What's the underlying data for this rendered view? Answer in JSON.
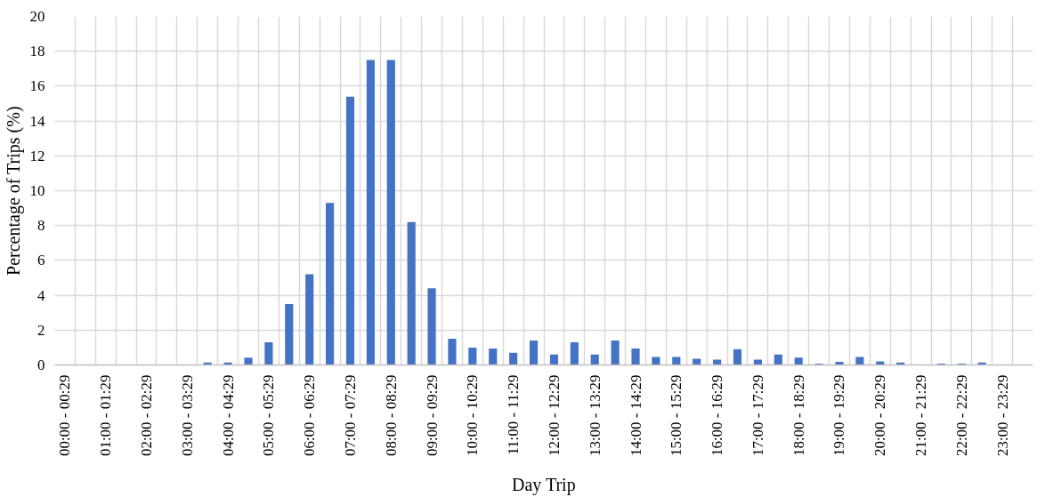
{
  "chart_data": {
    "type": "bar",
    "xlabel": "Day Trip",
    "ylabel": "Percentage of Trips (%)",
    "categories": [
      "00:00 - 00:29",
      null,
      "01:00 - 01:29",
      null,
      "02:00 - 02:29",
      null,
      "03:00 - 03:29",
      null,
      "04:00 - 04:29",
      null,
      "05:00 - 05:29",
      null,
      "06:00 - 06:29",
      null,
      "07:00 - 07:29",
      null,
      "08:00 - 08:29",
      null,
      "09:00 - 09:29",
      null,
      "10:00 - 10:29",
      null,
      "11:00 - 11:29",
      null,
      "12:00 - 12:29",
      null,
      "13:00 - 13:29",
      null,
      "14:00 - 14:29",
      null,
      "15:00 - 15:29",
      null,
      "16:00 - 16:29",
      null,
      "17:00 - 17:29",
      null,
      "18:00 - 18:29",
      null,
      "19:00 - 19:29",
      null,
      "20:00 - 20:29",
      null,
      "21:00 - 21:29",
      null,
      "22:00 - 22:29",
      null,
      "23:00 - 23:29",
      null
    ],
    "values": [
      0,
      0,
      0,
      0,
      0,
      0,
      0,
      0.14,
      0.14,
      0.42,
      1.3,
      3.5,
      5.2,
      9.3,
      15.4,
      17.5,
      17.5,
      8.2,
      4.4,
      1.5,
      1.0,
      0.95,
      0.7,
      1.4,
      0.6,
      1.3,
      0.6,
      1.4,
      0.95,
      0.46,
      0.46,
      0.36,
      0.3,
      0.9,
      0.3,
      0.6,
      0.42,
      0.08,
      0.18,
      0.46,
      0.2,
      0.14,
      0,
      0.08,
      0.08,
      0.14,
      0,
      0
    ],
    "color": "#4472c4",
    "ylim": [
      0,
      20
    ],
    "yticks": [
      0,
      2,
      4,
      6,
      8,
      10,
      12,
      14,
      16,
      18,
      20
    ],
    "grid": true
  }
}
